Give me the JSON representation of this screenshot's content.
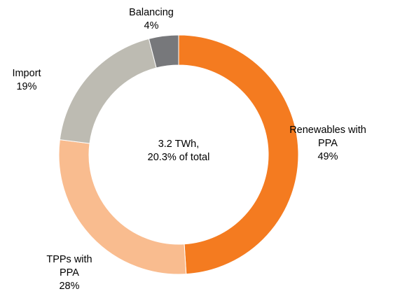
{
  "chart_data": {
    "type": "donut",
    "categories": [
      "Renewables with PPA",
      "TPPs with PPA",
      "Import",
      "Balancing"
    ],
    "values": [
      49,
      28,
      19,
      4
    ],
    "value_labels": [
      "49%",
      "28%",
      "19%",
      "4%"
    ],
    "colors": [
      "#f47b20",
      "#f9bc8f",
      "#bdbbb2",
      "#77787b"
    ],
    "center_label": [
      "3.2 TWh,",
      "20.3% of total"
    ]
  }
}
